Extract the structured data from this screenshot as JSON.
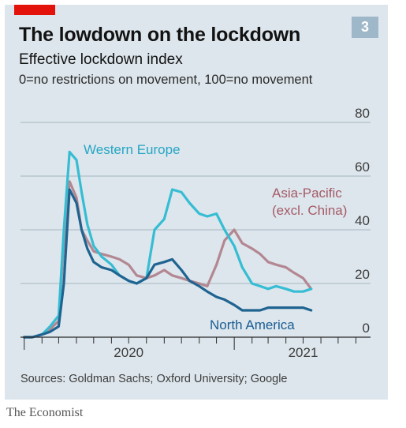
{
  "header": {
    "title": "The lowdown on the lockdown",
    "badge": "3",
    "subtitle": "Effective lockdown index",
    "subtitle2": "0=no restrictions on movement, 100=no movement"
  },
  "footer": {
    "source": "Sources: Goldman Sachs; Oxford University; Google",
    "brand": "The Economist"
  },
  "colors": {
    "western_europe": "#36bdd3",
    "asia_pacific": "#b38792",
    "north_america": "#1f6391",
    "asia_pacific_label": "#a55a67",
    "north_america_label": "#1a5d94",
    "western_europe_label": "#26a6c4"
  },
  "chart_data": {
    "type": "line",
    "title": "The lowdown on the lockdown",
    "subtitle": "Effective lockdown index",
    "ylim": [
      0,
      80
    ],
    "yticks": [
      0,
      20,
      40,
      60,
      80
    ],
    "grid": true,
    "xtick_labels": [
      "2020",
      "2021"
    ],
    "x": [
      "2020-01-01",
      "2020-01-15",
      "2020-02-01",
      "2020-02-15",
      "2020-03-01",
      "2020-03-10",
      "2020-03-20",
      "2020-04-01",
      "2020-04-10",
      "2020-04-20",
      "2020-05-01",
      "2020-05-15",
      "2020-06-01",
      "2020-06-15",
      "2020-07-01",
      "2020-07-15",
      "2020-08-01",
      "2020-08-15",
      "2020-09-01",
      "2020-09-15",
      "2020-10-01",
      "2020-10-15",
      "2020-11-01",
      "2020-11-15",
      "2020-12-01",
      "2020-12-15",
      "2021-01-01",
      "2021-01-15",
      "2021-02-01",
      "2021-02-15",
      "2021-03-01",
      "2021-03-15",
      "2021-04-01",
      "2021-04-15",
      "2021-05-01",
      "2021-05-15"
    ],
    "series": [
      {
        "name": "Western Europe",
        "values": [
          0,
          0,
          1,
          4,
          8,
          40,
          69,
          66,
          54,
          42,
          34,
          30,
          27,
          23,
          21,
          20,
          22,
          40,
          44,
          55,
          54,
          50,
          46,
          45,
          46,
          40,
          34,
          26,
          20,
          19,
          18,
          19,
          18,
          17,
          17,
          18
        ]
      },
      {
        "name": "Asia-Pacific (excl. China)",
        "values": [
          0,
          0,
          1,
          3,
          6,
          35,
          58,
          52,
          40,
          36,
          32,
          31,
          30,
          29,
          27,
          23,
          22,
          23,
          25,
          23,
          22,
          21,
          20,
          19,
          27,
          36,
          40,
          35,
          33,
          31,
          28,
          27,
          26,
          24,
          22,
          18
        ]
      },
      {
        "name": "North America",
        "values": [
          0,
          0,
          1,
          2,
          4,
          20,
          55,
          50,
          40,
          33,
          28,
          26,
          25,
          23,
          21,
          20,
          22,
          27,
          28,
          29,
          25,
          21,
          19,
          17,
          15,
          14,
          12,
          10,
          10,
          10,
          11,
          11,
          11,
          11,
          11,
          10
        ]
      }
    ],
    "series_labels": [
      "Western Europe",
      "Asia-Pacific",
      "(excl. China)",
      "North America"
    ]
  }
}
